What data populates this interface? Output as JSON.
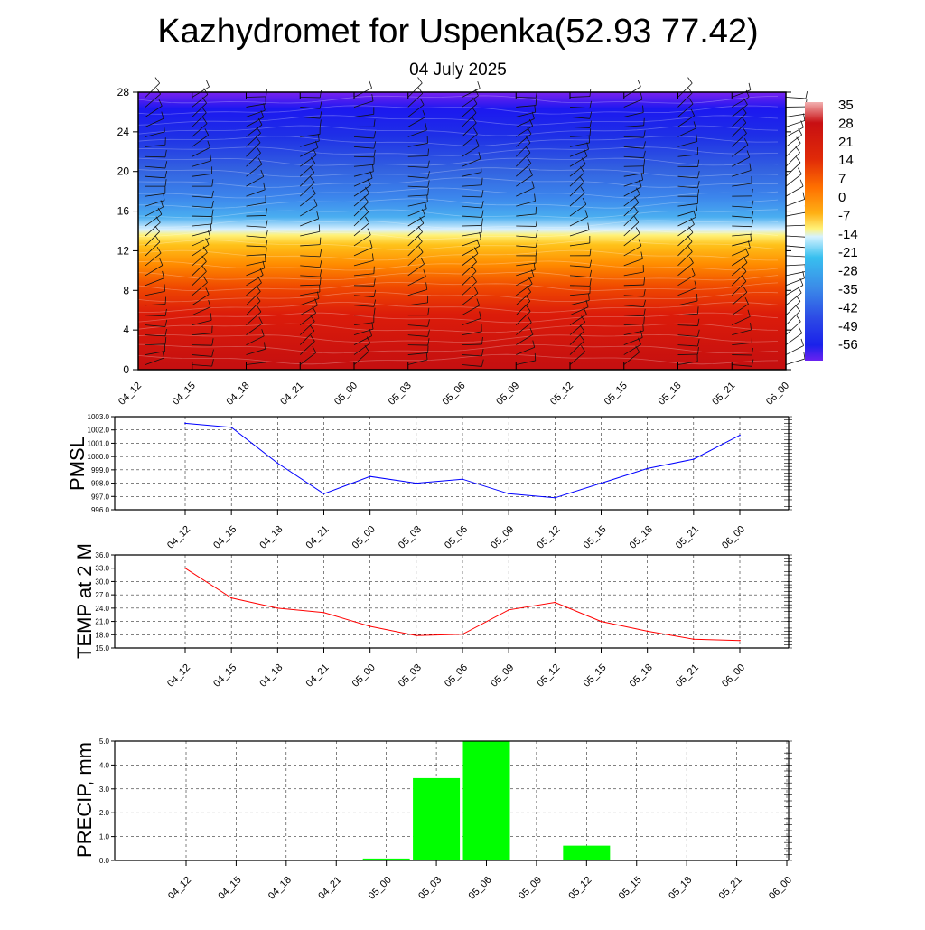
{
  "header": {
    "title": "Kazhydromet for Uspenka(52.93 77.42)",
    "subtitle": "04 July 2025"
  },
  "chart_data": [
    {
      "type": "heatmap",
      "title": "",
      "x_categories": [
        "04_12",
        "04_15",
        "04_18",
        "04_21",
        "05_00",
        "05_03",
        "05_06",
        "05_09",
        "05_12",
        "05_15",
        "05_18",
        "05_21",
        "06_00"
      ],
      "y_ticks": [
        0,
        4,
        8,
        12,
        16,
        20,
        24,
        28
      ],
      "ylim": [
        0,
        28
      ],
      "colorbar": {
        "labels": [
          35,
          28,
          21,
          14,
          7,
          0,
          -7,
          -14,
          -21,
          -28,
          -35,
          -42,
          -49,
          -56
        ],
        "stops": [
          {
            "value": 35,
            "color": "#f2b0b0"
          },
          {
            "value": 28,
            "color": "#c80f12"
          },
          {
            "value": 21,
            "color": "#d81a0a"
          },
          {
            "value": 14,
            "color": "#f23c00"
          },
          {
            "value": 7,
            "color": "#ff8c00"
          },
          {
            "value": 0,
            "color": "#ffc21a"
          },
          {
            "value": -7,
            "color": "#fff27a"
          },
          {
            "value": -14,
            "color": "#d6f2ff"
          },
          {
            "value": -21,
            "color": "#38c0ef"
          },
          {
            "value": -28,
            "color": "#3aa0f0"
          },
          {
            "value": -35,
            "color": "#3b7be8"
          },
          {
            "value": -42,
            "color": "#2f4ce6"
          },
          {
            "value": -49,
            "color": "#1a22ea"
          },
          {
            "value": -56,
            "color": "#5a22f0"
          }
        ]
      },
      "wind_barbs": true
    },
    {
      "type": "line",
      "ylabel": "PMSL",
      "x": [
        "04_12",
        "04_15",
        "04_18",
        "04_21",
        "05_00",
        "05_03",
        "05_06",
        "05_09",
        "05_12",
        "05_15",
        "05_18",
        "05_21",
        "06_00"
      ],
      "y_ticks": [
        "996.0",
        "997.0",
        "998.0",
        "999.0",
        "1000.0",
        "1001.0",
        "1002.0",
        "1003.0"
      ],
      "ylim": [
        996,
        1003
      ],
      "values": [
        1002.5,
        1002.2,
        999.5,
        997.2,
        998.5,
        998.0,
        998.3,
        997.2,
        996.9,
        998.0,
        999.1,
        999.8,
        1001.6
      ],
      "color": "#0000ff",
      "grid": true
    },
    {
      "type": "line",
      "ylabel": "TEMP at 2 M",
      "x": [
        "04_12",
        "04_15",
        "04_18",
        "04_21",
        "05_00",
        "05_03",
        "05_06",
        "05_09",
        "05_12",
        "05_15",
        "05_18",
        "05_21",
        "06_00"
      ],
      "y_ticks": [
        "15.0",
        "18.0",
        "21.0",
        "24.0",
        "27.0",
        "30.0",
        "33.0",
        "36.0"
      ],
      "ylim": [
        15,
        36
      ],
      "values": [
        33.0,
        26.3,
        24.0,
        23.0,
        19.9,
        17.8,
        18.1,
        23.6,
        25.3,
        21.0,
        18.8,
        17.0,
        16.7
      ],
      "color": "#ff0000",
      "grid": true
    },
    {
      "type": "bar",
      "ylabel": "PRECIP, mm",
      "categories": [
        "04_12",
        "04_15",
        "04_18",
        "04_21",
        "05_00",
        "05_03",
        "05_06",
        "05_09",
        "05_12",
        "05_15",
        "05_18",
        "05_21",
        "06_00"
      ],
      "y_ticks": [
        "0.0",
        "1.0",
        "2.0",
        "3.0",
        "4.0",
        "5.0"
      ],
      "ylim": [
        0,
        5
      ],
      "values": [
        0,
        0,
        0,
        0,
        0.08,
        3.45,
        5.0,
        0,
        0.62,
        0,
        0,
        0,
        0
      ],
      "color": "#00ff00",
      "grid": true
    }
  ]
}
